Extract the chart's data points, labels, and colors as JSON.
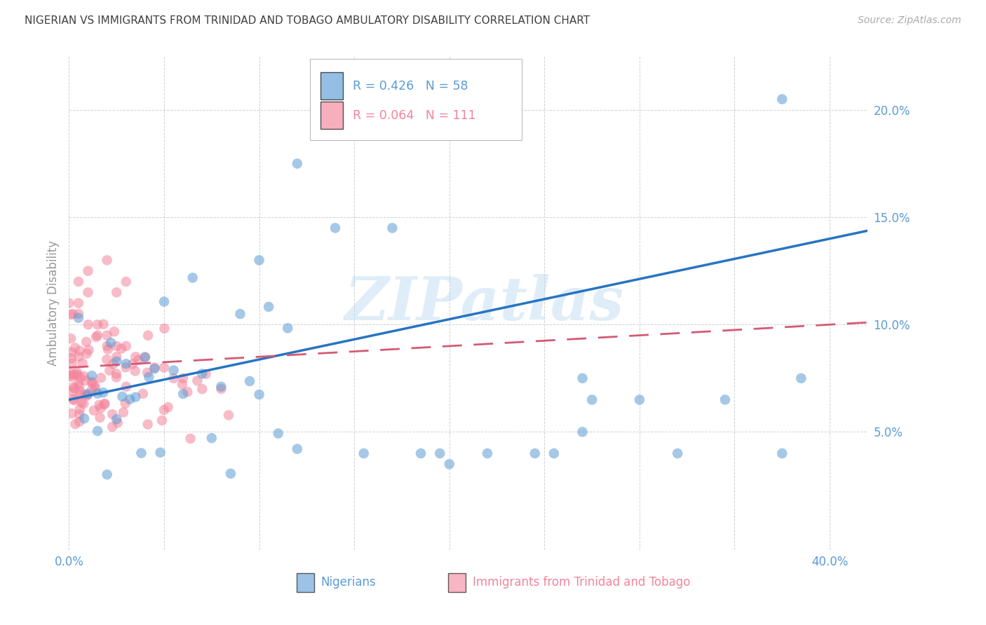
{
  "title": "NIGERIAN VS IMMIGRANTS FROM TRINIDAD AND TOBAGO AMBULATORY DISABILITY CORRELATION CHART",
  "source": "Source: ZipAtlas.com",
  "ylabel": "Ambulatory Disability",
  "xlim": [
    0.0,
    0.42
  ],
  "ylim": [
    -0.005,
    0.225
  ],
  "yticks": [
    0.05,
    0.1,
    0.15,
    0.2
  ],
  "ytick_labels": [
    "5.0%",
    "10.0%",
    "15.0%",
    "20.0%"
  ],
  "xtick_vals": [
    0.0,
    0.05,
    0.1,
    0.15,
    0.2,
    0.25,
    0.3,
    0.35,
    0.4
  ],
  "xtick_labels": [
    "0.0%",
    "",
    "",
    "",
    "",
    "",
    "",
    "",
    "40.0%"
  ],
  "watermark": "ZIPatlas",
  "legend_blue_label": "Nigerians",
  "legend_pink_label": "Immigrants from Trinidad and Tobago",
  "blue_color": "#5b9bd5",
  "pink_color": "#f4849c",
  "title_color": "#404040",
  "axis_label_color": "#5b9bd5",
  "blue_trend_color": "#2774c2",
  "pink_trend_color": "#d45a74"
}
